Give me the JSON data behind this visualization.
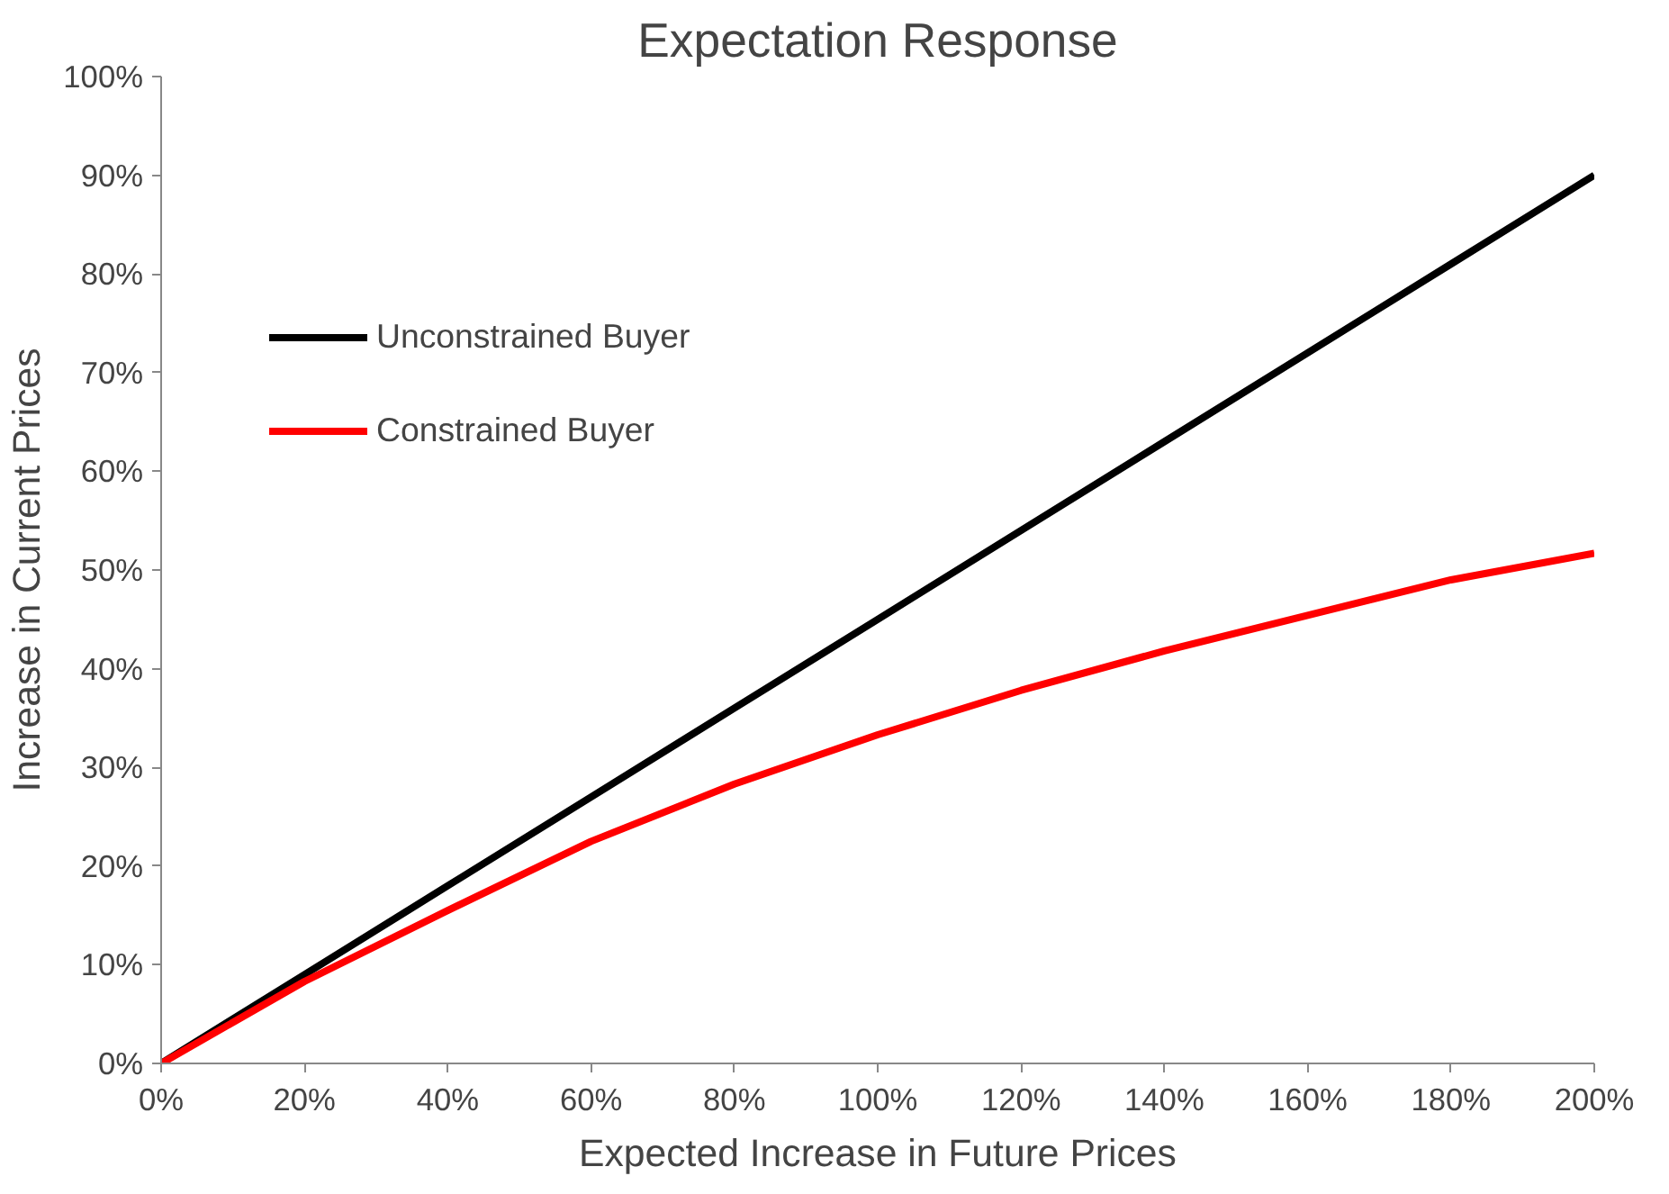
{
  "chart_data": {
    "type": "line",
    "title": "Expectation Response",
    "xlabel": "Expected Increase in Future Prices",
    "ylabel": "Increase in Current Prices",
    "x": [
      0,
      20,
      40,
      60,
      80,
      100,
      120,
      140,
      160,
      180,
      200
    ],
    "series": [
      {
        "name": "Unconstrained Buyer",
        "color": "#000000",
        "values": [
          0,
          9,
          18,
          27,
          36,
          45,
          54,
          63,
          72,
          81,
          90
        ]
      },
      {
        "name": "Constrained Buyer",
        "color": "#ff0000",
        "values": [
          0,
          8.3,
          15.5,
          22.5,
          28.3,
          33.3,
          37.8,
          41.8,
          45.4,
          49,
          51.7
        ]
      }
    ],
    "xlim": [
      0,
      200
    ],
    "ylim": [
      0,
      100
    ],
    "xticks": [
      {
        "value": 0,
        "label": "0%"
      },
      {
        "value": 20,
        "label": "20%"
      },
      {
        "value": 40,
        "label": "40%"
      },
      {
        "value": 60,
        "label": "60%"
      },
      {
        "value": 80,
        "label": "80%"
      },
      {
        "value": 100,
        "label": "100%"
      },
      {
        "value": 120,
        "label": "120%"
      },
      {
        "value": 140,
        "label": "140%"
      },
      {
        "value": 160,
        "label": "160%"
      },
      {
        "value": 180,
        "label": "180%"
      },
      {
        "value": 200,
        "label": "200%"
      }
    ],
    "yticks": [
      {
        "value": 0,
        "label": "0%"
      },
      {
        "value": 10,
        "label": "10%"
      },
      {
        "value": 20,
        "label": "20%"
      },
      {
        "value": 30,
        "label": "30%"
      },
      {
        "value": 40,
        "label": "40%"
      },
      {
        "value": 50,
        "label": "50%"
      },
      {
        "value": 60,
        "label": "60%"
      },
      {
        "value": 70,
        "label": "70%"
      },
      {
        "value": 80,
        "label": "80%"
      },
      {
        "value": 90,
        "label": "90%"
      },
      {
        "value": 100,
        "label": "100%"
      }
    ],
    "grid": false,
    "legend": "top left",
    "marker": "none",
    "line_style": "solid"
  }
}
